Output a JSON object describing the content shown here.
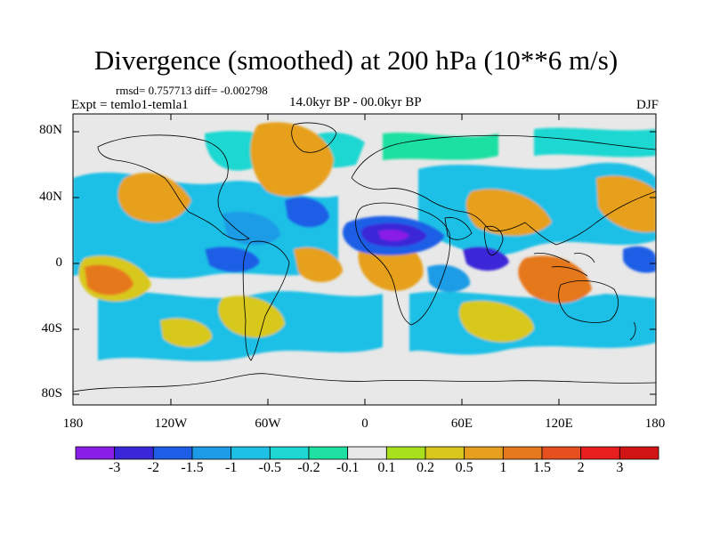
{
  "title": "Divergence (smoothed) at 200 hPa (10**6 m/s)",
  "stats": "rmsd= 0.757713 diff= -0.002798",
  "experiment": "Expt = temlo1-temla1",
  "period": "14.0kyr BP - 00.0kyr BP",
  "season": "DJF",
  "lat_labels": [
    "80N",
    "40N",
    "0",
    "40S",
    "80S"
  ],
  "lon_labels": [
    "180",
    "120W",
    "60W",
    "0",
    "60E",
    "120E",
    "180"
  ],
  "colorbar": {
    "labels": [
      "-3",
      "-2",
      "-1.5",
      "-1",
      "-0.5",
      "-0.2",
      "-0.1",
      "0.1",
      "0.2",
      "0.5",
      "1",
      "1.5",
      "2",
      "3"
    ],
    "colors": [
      "#8a1ee6",
      "#3a28d8",
      "#1e5ee6",
      "#1e9be6",
      "#1ec0e6",
      "#1ed7d2",
      "#1ee0a0",
      "#e8e8e8",
      "#a8e01e",
      "#d8c81e",
      "#e6a01e",
      "#e6781e",
      "#e6501e",
      "#e61e1e",
      "#d21414"
    ]
  },
  "map_colors": {
    "background": "#e8e8e8",
    "coast": "#000000"
  }
}
